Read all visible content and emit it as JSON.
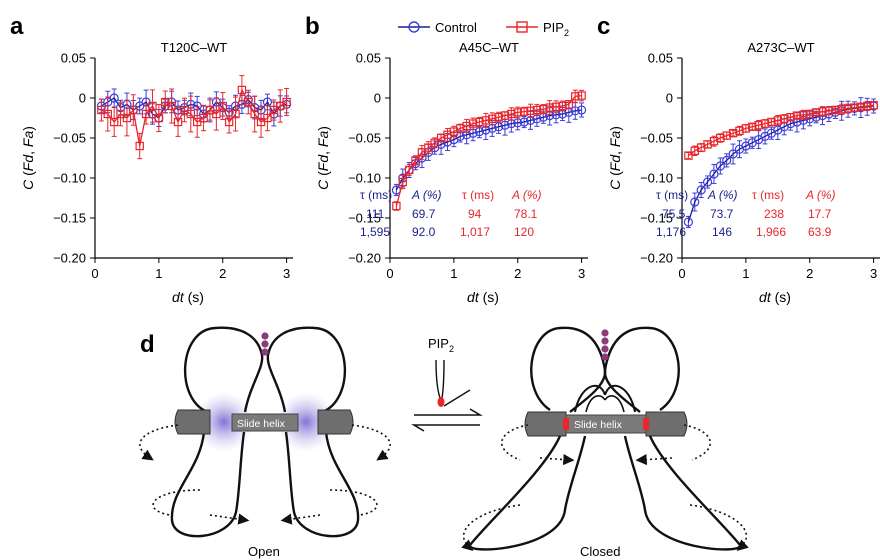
{
  "legend": {
    "control": "Control",
    "pip": "PIP",
    "pip_sub": "2"
  },
  "colors": {
    "control": "#1b1f8a",
    "control_marker": "#3c3cdc",
    "pip": "#e8262b"
  },
  "panels": [
    {
      "label": "a",
      "title": "T120C–WT"
    },
    {
      "label": "b",
      "title": "A45C–WT"
    },
    {
      "label": "c",
      "title": "A273C–WT"
    }
  ],
  "axes": {
    "ylabel_prefix": "C (",
    "ylabel_fd": "Fd",
    "ylabel_comma": ", ",
    "ylabel_fa": "Fa",
    "ylabel_suffix": ")",
    "xlabel_var": "dt",
    "xlabel_unit": " (s)",
    "yticks": [
      "0.05",
      "0",
      "−0.05",
      "−0.10",
      "−0.15",
      "−0.20"
    ],
    "xticks": [
      "0",
      "1",
      "2",
      "3"
    ]
  },
  "tables": {
    "b": {
      "h_tau": "τ (ms)",
      "h_a": "A (%)",
      "ctrl": [
        [
          "111",
          "69.7"
        ],
        [
          "1,595",
          "92.0"
        ]
      ],
      "pip": [
        [
          "94",
          "78.1"
        ],
        [
          "1,017",
          "120"
        ]
      ]
    },
    "c": {
      "h_tau": "τ (ms)",
      "h_a": "A (%)",
      "ctrl": [
        [
          "75.5",
          "73.7"
        ],
        [
          "1,176",
          "146"
        ]
      ],
      "pip": [
        [
          "238",
          "17.7"
        ],
        [
          "1,966",
          "63.9"
        ]
      ]
    }
  },
  "diagram": {
    "label": "d",
    "pip_label": "PIP",
    "pip_sub": "2",
    "slide_helix": "Slide helix",
    "open": "Open",
    "closed": "Closed"
  },
  "chart_data": [
    {
      "type": "scatter",
      "title": "T120C–WT",
      "xlabel": "dt (s)",
      "ylabel": "C (Fd, Fa)",
      "xlim": [
        0,
        3.1
      ],
      "ylim": [
        -0.2,
        0.05
      ],
      "series": [
        {
          "name": "Control",
          "x": [
            0.1,
            0.2,
            0.3,
            0.4,
            0.5,
            0.6,
            0.7,
            0.8,
            0.9,
            1.0,
            1.1,
            1.2,
            1.3,
            1.4,
            1.5,
            1.6,
            1.7,
            1.8,
            1.9,
            2.0,
            2.1,
            2.2,
            2.3,
            2.4,
            2.5,
            2.6,
            2.7,
            2.8,
            2.9,
            3.0
          ],
          "y": [
            -0.01,
            -0.005,
            0.0,
            -0.012,
            -0.008,
            -0.015,
            -0.01,
            -0.005,
            -0.02,
            -0.025,
            -0.01,
            -0.005,
            -0.015,
            -0.012,
            -0.008,
            -0.01,
            -0.02,
            -0.015,
            -0.005,
            -0.012,
            -0.018,
            -0.01,
            -0.008,
            -0.002,
            -0.012,
            -0.015,
            -0.005,
            -0.02,
            -0.01,
            -0.008
          ],
          "err": 0.012
        },
        {
          "name": "PIP2",
          "x": [
            0.1,
            0.2,
            0.3,
            0.4,
            0.5,
            0.6,
            0.7,
            0.8,
            0.9,
            1.0,
            1.1,
            1.2,
            1.3,
            1.4,
            1.5,
            1.6,
            1.7,
            1.8,
            1.9,
            2.0,
            2.1,
            2.2,
            2.3,
            2.4,
            2.5,
            2.6,
            2.7,
            2.8,
            2.9,
            3.0
          ],
          "y": [
            -0.015,
            -0.02,
            -0.03,
            -0.02,
            -0.025,
            -0.015,
            -0.06,
            -0.02,
            -0.01,
            -0.025,
            -0.005,
            -0.01,
            -0.03,
            -0.015,
            -0.02,
            -0.03,
            -0.025,
            -0.015,
            -0.02,
            -0.01,
            -0.03,
            -0.02,
            0.01,
            -0.005,
            -0.02,
            -0.03,
            -0.025,
            -0.015,
            -0.01,
            -0.005
          ],
          "err": 0.018
        }
      ]
    },
    {
      "type": "scatter",
      "title": "A45C–WT",
      "xlabel": "dt (s)",
      "ylabel": "C (Fd, Fa)",
      "xlim": [
        0,
        3.1
      ],
      "ylim": [
        -0.2,
        0.05
      ],
      "series": [
        {
          "name": "Control",
          "x": [
            0.1,
            0.2,
            0.3,
            0.4,
            0.5,
            0.6,
            0.7,
            0.8,
            0.9,
            1.0,
            1.1,
            1.2,
            1.3,
            1.4,
            1.5,
            1.6,
            1.7,
            1.8,
            1.9,
            2.0,
            2.1,
            2.2,
            2.3,
            2.4,
            2.5,
            2.6,
            2.7,
            2.8,
            2.9,
            3.0
          ],
          "y": [
            -0.115,
            -0.1,
            -0.09,
            -0.082,
            -0.075,
            -0.068,
            -0.062,
            -0.058,
            -0.055,
            -0.052,
            -0.048,
            -0.046,
            -0.044,
            -0.042,
            -0.04,
            -0.038,
            -0.036,
            -0.034,
            -0.032,
            -0.031,
            -0.03,
            -0.028,
            -0.026,
            -0.024,
            -0.022,
            -0.021,
            -0.02,
            -0.018,
            -0.016,
            -0.015
          ],
          "err": 0.01
        },
        {
          "name": "PIP2",
          "x": [
            0.1,
            0.2,
            0.3,
            0.4,
            0.5,
            0.6,
            0.7,
            0.8,
            0.9,
            1.0,
            1.1,
            1.2,
            1.3,
            1.4,
            1.5,
            1.6,
            1.7,
            1.8,
            1.9,
            2.0,
            2.1,
            2.2,
            2.3,
            2.4,
            2.5,
            2.6,
            2.7,
            2.8,
            2.9,
            3.0
          ],
          "y": [
            -0.135,
            -0.105,
            -0.09,
            -0.078,
            -0.068,
            -0.062,
            -0.056,
            -0.05,
            -0.046,
            -0.042,
            -0.038,
            -0.035,
            -0.032,
            -0.03,
            -0.028,
            -0.026,
            -0.024,
            -0.022,
            -0.02,
            -0.018,
            -0.017,
            -0.016,
            -0.015,
            -0.014,
            -0.012,
            -0.011,
            -0.01,
            -0.008,
            0.002,
            0.003
          ],
          "err": 0.007
        }
      ]
    },
    {
      "type": "scatter",
      "title": "A273C–WT",
      "xlabel": "dt (s)",
      "ylabel": "C (Fd, Fa)",
      "xlim": [
        0,
        3.1
      ],
      "ylim": [
        -0.2,
        0.05
      ],
      "series": [
        {
          "name": "Control",
          "x": [
            0.1,
            0.2,
            0.3,
            0.4,
            0.5,
            0.6,
            0.7,
            0.8,
            0.9,
            1.0,
            1.1,
            1.2,
            1.3,
            1.4,
            1.5,
            1.6,
            1.7,
            1.8,
            1.9,
            2.0,
            2.1,
            2.2,
            2.3,
            2.4,
            2.5,
            2.6,
            2.7,
            2.8,
            2.9,
            3.0
          ],
          "y": [
            -0.155,
            -0.13,
            -0.115,
            -0.105,
            -0.095,
            -0.085,
            -0.078,
            -0.07,
            -0.064,
            -0.06,
            -0.056,
            -0.052,
            -0.048,
            -0.044,
            -0.04,
            -0.036,
            -0.032,
            -0.03,
            -0.028,
            -0.026,
            -0.024,
            -0.022,
            -0.02,
            -0.018,
            -0.016,
            -0.014,
            -0.013,
            -0.012,
            -0.011,
            -0.01
          ],
          "err": 0.01
        },
        {
          "name": "PIP2",
          "x": [
            0.1,
            0.2,
            0.3,
            0.4,
            0.5,
            0.6,
            0.7,
            0.8,
            0.9,
            1.0,
            1.1,
            1.2,
            1.3,
            1.4,
            1.5,
            1.6,
            1.7,
            1.8,
            1.9,
            2.0,
            2.1,
            2.2,
            2.3,
            2.4,
            2.5,
            2.6,
            2.7,
            2.8,
            2.9,
            3.0
          ],
          "y": [
            -0.072,
            -0.066,
            -0.062,
            -0.058,
            -0.054,
            -0.05,
            -0.047,
            -0.044,
            -0.041,
            -0.038,
            -0.036,
            -0.034,
            -0.032,
            -0.03,
            -0.028,
            -0.026,
            -0.024,
            -0.022,
            -0.021,
            -0.02,
            -0.018,
            -0.017,
            -0.016,
            -0.015,
            -0.014,
            -0.013,
            -0.012,
            -0.011,
            -0.01,
            -0.009
          ],
          "err": 0.005
        }
      ]
    }
  ]
}
